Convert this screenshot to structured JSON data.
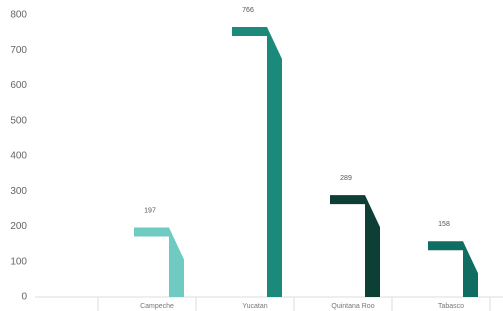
{
  "chart_data": {
    "type": "bar",
    "categories": [
      "Campeche",
      "Yucatan",
      "Quintana Roo",
      "Tabasco"
    ],
    "values": [
      197,
      766,
      289,
      158
    ],
    "colors": [
      "#6fcac2",
      "#1b8a7b",
      "#0d3f37",
      "#0f6e61"
    ],
    "ylim": [
      0,
      800
    ],
    "yticks": [
      0,
      100,
      200,
      300,
      400,
      500,
      600,
      700,
      800
    ]
  }
}
